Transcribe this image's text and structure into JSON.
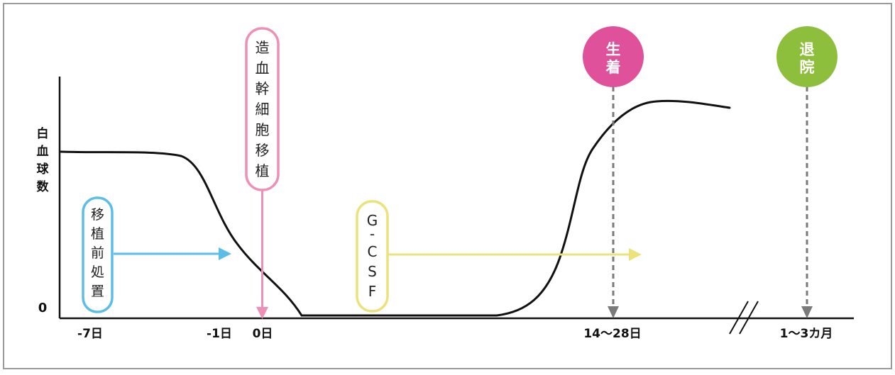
{
  "y_axis": {
    "label_chars": [
      "白",
      "血",
      "球",
      "数"
    ],
    "zero_label": "0"
  },
  "x_ticks": {
    "minus7": "-7日",
    "minus1": "-1日",
    "day0": "0日",
    "engraft_range": "14〜28日",
    "discharge_range": "1〜3カ月"
  },
  "labels": {
    "pretreatment_chars": [
      "移",
      "植",
      "前",
      "処",
      "置"
    ],
    "transplant_chars": [
      "造",
      "血",
      "幹",
      "細",
      "胞",
      "移",
      "植"
    ],
    "gcsf_chars": [
      "G",
      "-",
      "C",
      "S",
      "F"
    ],
    "engraftment_chars": [
      "生",
      "着"
    ],
    "discharge_chars": [
      "退",
      "院"
    ]
  },
  "colors": {
    "pretreatment": "#5bbde8",
    "transplant": "#ef8fb8",
    "gcsf": "#ece27c",
    "engraftment": "#e0519b",
    "discharge": "#8ebf3c",
    "marker_gray": "#7a7a7a",
    "curve": "#111111",
    "frame": "#9a9a9a"
  }
}
